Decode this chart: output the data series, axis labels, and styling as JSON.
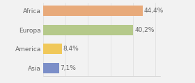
{
  "categories": [
    "Asia",
    "America",
    "Europa",
    "Africa"
  ],
  "values": [
    7.1,
    8.4,
    40.2,
    44.4
  ],
  "labels": [
    "7,1%",
    "8,4%",
    "40,2%",
    "44,4%"
  ],
  "bar_colors": [
    "#7b8ec8",
    "#f0c85a",
    "#b5c98a",
    "#e8aa7a"
  ],
  "background_color": "#f2f2f2",
  "xlim": [
    0,
    52
  ],
  "bar_height": 0.55,
  "label_fontsize": 6.5,
  "tick_fontsize": 6.5,
  "grid_xticks": [
    0,
    10,
    20,
    30,
    40,
    50
  ]
}
